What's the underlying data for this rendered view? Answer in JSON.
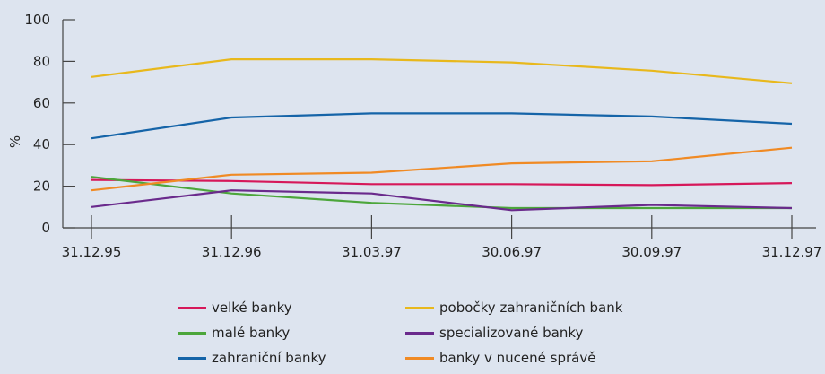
{
  "chart_data": {
    "type": "line",
    "title": "",
    "xlabel": "",
    "ylabel": "%",
    "ylim": [
      0,
      100
    ],
    "yticks": [
      0,
      20,
      40,
      60,
      80,
      100
    ],
    "categories": [
      "31.12.95",
      "31.12.96",
      "31.03.97",
      "30.06.97",
      "30.09.97",
      "31.12.97"
    ],
    "legend_position": "bottom",
    "series": [
      {
        "name": "velké banky",
        "color": "#d6185a",
        "values": [
          23,
          22.5,
          21,
          21,
          20.5,
          21.5
        ]
      },
      {
        "name": "malé banky",
        "color": "#4ca63b",
        "values": [
          24.5,
          16.5,
          12,
          9.5,
          9.5,
          9.5
        ]
      },
      {
        "name": "zahraniční banky",
        "color": "#1564a8",
        "values": [
          43,
          53,
          55,
          55,
          53.5,
          50
        ]
      },
      {
        "name": "pobočky zahraničních bank",
        "color": "#e8b81c",
        "values": [
          72.5,
          81,
          81,
          79.5,
          75.5,
          69.5
        ]
      },
      {
        "name": "specializované banky",
        "color": "#6a2a8c",
        "values": [
          10,
          18,
          16.5,
          8.5,
          11,
          9.5
        ]
      },
      {
        "name": "banky v nucené správě",
        "color": "#f08a24",
        "values": [
          18,
          25.5,
          26.5,
          31,
          32,
          38.5
        ]
      }
    ]
  }
}
